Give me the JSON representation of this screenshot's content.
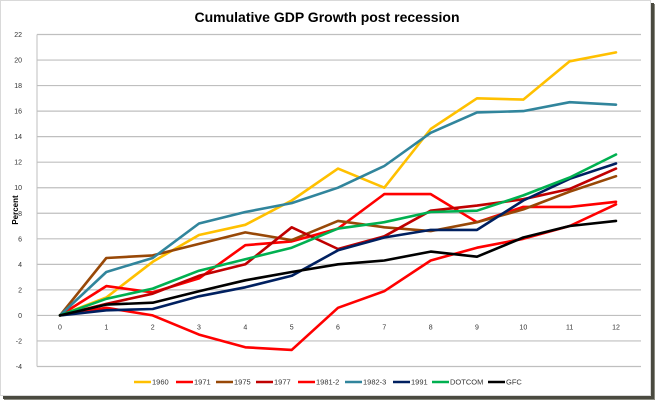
{
  "chart_data": {
    "type": "line",
    "title": "Cumulative GDP Growth post recession",
    "xlabel": "",
    "ylabel": "Percent",
    "x": [
      0,
      1,
      2,
      3,
      4,
      5,
      6,
      7,
      8,
      9,
      10,
      11,
      12
    ],
    "xlim": [
      0,
      12
    ],
    "ylim": [
      -4,
      22
    ],
    "yticks": [
      -4,
      -2,
      0,
      2,
      4,
      6,
      8,
      10,
      12,
      14,
      16,
      18,
      20,
      22
    ],
    "grid": true,
    "legend_position": "bottom",
    "series": [
      {
        "name": "1960",
        "color": "#FFC000",
        "values": [
          0,
          1.4,
          4.2,
          6.3,
          7.1,
          9.0,
          11.5,
          10.0,
          14.6,
          17.0,
          16.9,
          19.9,
          20.6
        ]
      },
      {
        "name": "1971",
        "color": "#FF0000",
        "values": [
          0,
          2.3,
          1.8,
          2.9,
          5.5,
          5.8,
          6.8,
          9.5,
          9.5,
          7.3,
          8.5,
          8.5,
          8.9
        ]
      },
      {
        "name": "1975",
        "color": "#984807",
        "values": [
          0,
          4.5,
          4.7,
          5.6,
          6.5,
          5.9,
          7.4,
          6.9,
          6.6,
          7.3,
          8.3,
          9.7,
          10.9
        ]
      },
      {
        "name": "1977",
        "color": "#C00000",
        "values": [
          0,
          0.9,
          1.7,
          3.1,
          4.0,
          6.9,
          5.2,
          6.2,
          8.2,
          8.6,
          9.1,
          9.9,
          11.5
        ]
      },
      {
        "name": "1981-2",
        "color": "#FF0000",
        "values": [
          0,
          0.6,
          0.0,
          -1.5,
          -2.5,
          -2.7,
          0.6,
          1.9,
          4.3,
          5.3,
          6.0,
          7.0,
          8.7
        ]
      },
      {
        "name": "1982-3",
        "color": "#31859C",
        "values": [
          0,
          3.4,
          4.5,
          7.2,
          8.1,
          8.8,
          10.0,
          11.7,
          14.3,
          15.9,
          16.0,
          16.7,
          16.5
        ]
      },
      {
        "name": "1991",
        "color": "#002060",
        "values": [
          0,
          0.4,
          0.5,
          1.5,
          2.2,
          3.1,
          5.1,
          6.1,
          6.7,
          6.7,
          9.0,
          10.7,
          11.9
        ]
      },
      {
        "name": "DOTCOM",
        "color": "#00B050",
        "values": [
          0,
          1.3,
          2.1,
          3.5,
          4.4,
          5.3,
          6.8,
          7.3,
          8.1,
          8.2,
          9.4,
          10.8,
          12.6
        ]
      },
      {
        "name": "GFC",
        "color": "#000000",
        "values": [
          0,
          0.85,
          1.0,
          1.9,
          2.75,
          3.4,
          4.0,
          4.3,
          5.0,
          4.6,
          6.1,
          7.0,
          7.4
        ]
      }
    ]
  }
}
